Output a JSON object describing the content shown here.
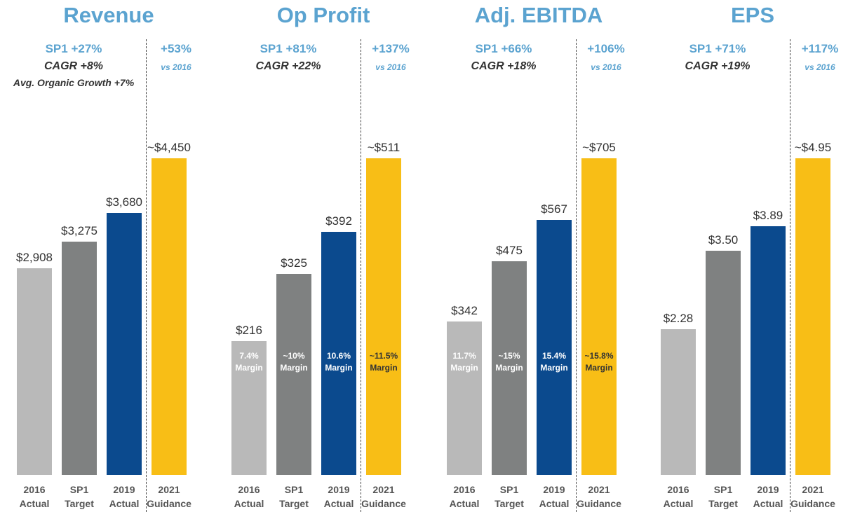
{
  "chart_data": [
    {
      "type": "bar",
      "title": "Revenue",
      "annotations": {
        "growth": "SP1 +27%",
        "cagr": "CAGR +8%",
        "organic": "Avg. Organic Growth +7%",
        "guidance_growth": "+53%",
        "guidance_note": "vs 2016"
      },
      "categories": [
        "2016 Actual",
        "SP1 Target",
        "2019 Actual",
        "2021 Guidance"
      ],
      "values": [
        2908,
        3275,
        3680,
        4450
      ],
      "value_labels": [
        "$2,908",
        "$3,275",
        "$3,680",
        "~$4,450"
      ],
      "colors": [
        "#b9b9b9",
        "#7f8181",
        "#0b4a8e",
        "#f8be16"
      ]
    },
    {
      "type": "bar",
      "title": "Op Profit",
      "annotations": {
        "growth": "SP1 +81%",
        "cagr": "CAGR +22%",
        "guidance_growth": "+137%",
        "guidance_note": "vs 2016"
      },
      "categories": [
        "2016 Actual",
        "SP1 Target",
        "2019 Actual",
        "2021 Guidance"
      ],
      "values": [
        216,
        325,
        392,
        511
      ],
      "value_labels": [
        "$216",
        "$325",
        "$392",
        "~$511"
      ],
      "bar_labels": [
        "7.4% Margin",
        "~10% Margin",
        "10.6% Margin",
        "~11.5% Margin"
      ],
      "colors": [
        "#b9b9b9",
        "#7f8181",
        "#0b4a8e",
        "#f8be16"
      ]
    },
    {
      "type": "bar",
      "title": "Adj. EBITDA",
      "annotations": {
        "growth": "SP1 +66%",
        "cagr": "CAGR +18%",
        "guidance_growth": "+106%",
        "guidance_note": "vs 2016"
      },
      "categories": [
        "2016 Actual",
        "SP1 Target",
        "2019 Actual",
        "2021 Guidance"
      ],
      "values": [
        342,
        475,
        567,
        705
      ],
      "value_labels": [
        "$342",
        "$475",
        "$567",
        "~$705"
      ],
      "bar_labels": [
        "11.7% Margin",
        "~15% Margin",
        "15.4% Margin",
        "~15.8% Margin"
      ],
      "colors": [
        "#b9b9b9",
        "#7f8181",
        "#0b4a8e",
        "#f8be16"
      ]
    },
    {
      "type": "bar",
      "title": "EPS",
      "annotations": {
        "growth": "SP1 +71%",
        "cagr": "CAGR +19%",
        "guidance_growth": "+117%",
        "guidance_note": "vs 2016"
      },
      "categories": [
        "2016 Actual",
        "SP1 Target",
        "2019 Actual",
        "2021 Guidance"
      ],
      "values": [
        2.28,
        3.5,
        3.89,
        4.95
      ],
      "value_labels": [
        "$2.28",
        "$3.50",
        "$3.89",
        "~$4.95"
      ],
      "colors": [
        "#b9b9b9",
        "#7f8181",
        "#0b4a8e",
        "#f8be16"
      ]
    }
  ]
}
